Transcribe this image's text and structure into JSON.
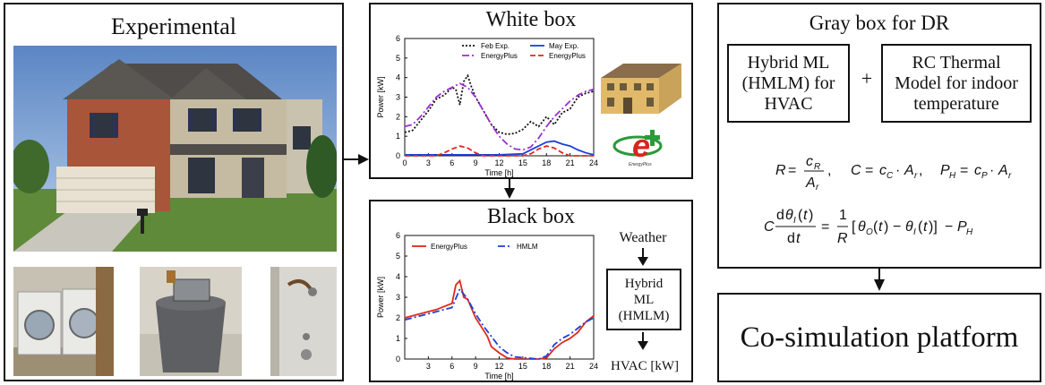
{
  "panels": {
    "experimental": {
      "title": "Experimental"
    },
    "white_box": {
      "title": "White box"
    },
    "black_box": {
      "title": "Black box"
    },
    "gray_box": {
      "title": "Gray box for DR"
    },
    "cosim": {
      "title": "Co-simulation platform"
    }
  },
  "gray_box": {
    "hmlm_box": [
      "Hybrid ML",
      "(HMLM) for",
      "HVAC"
    ],
    "plus": "+",
    "rc_box": [
      "RC Thermal",
      "Model for indoor",
      "temperature"
    ]
  },
  "black_box_flow": {
    "weather": "Weather",
    "hybrid_ml": [
      "Hybrid",
      "ML",
      "(HMLM)"
    ],
    "output": "HVAC [kW]"
  },
  "energyplus_logo": {
    "text": "EnergyPlus"
  },
  "chart_data": [
    {
      "type": "line",
      "panel": "White box",
      "xlabel": "Time [h]",
      "ylabel": "Power [kW]",
      "xlim": [
        0,
        24
      ],
      "ylim": [
        0,
        6
      ],
      "xticks": [
        0,
        3,
        6,
        9,
        12,
        15,
        18,
        21,
        24
      ],
      "yticks": [
        0,
        1,
        2,
        3,
        4,
        5,
        6
      ],
      "legend_position": "top",
      "series": [
        {
          "name": "Feb Exp.",
          "color": "#111111",
          "style": "dotted",
          "x": [
            0,
            1,
            2,
            3,
            4,
            5,
            6,
            6.5,
            7,
            7.5,
            8,
            8.5,
            9,
            10,
            11,
            12,
            13,
            14,
            15,
            16,
            17,
            18,
            19,
            20,
            21,
            22,
            23,
            24
          ],
          "y": [
            1.2,
            1.3,
            1.8,
            2.3,
            2.9,
            3.1,
            3.5,
            3.4,
            2.6,
            3.8,
            4.1,
            3.5,
            3.0,
            2.3,
            1.6,
            1.2,
            1.1,
            1.15,
            1.35,
            1.75,
            1.5,
            2.0,
            1.6,
            2.2,
            2.4,
            3.0,
            3.2,
            3.3
          ]
        },
        {
          "name": "May Exp.",
          "color": "#1f3fd6",
          "style": "solid",
          "x": [
            0,
            6,
            12,
            15,
            16,
            17,
            18,
            19,
            20,
            21,
            22,
            23,
            24
          ],
          "y": [
            0.05,
            0.05,
            0.05,
            0.1,
            0.3,
            0.5,
            0.7,
            0.75,
            0.6,
            0.5,
            0.3,
            0.15,
            0.05
          ]
        },
        {
          "name": "EnergyPlus",
          "color": "#9a2fd1",
          "style": "dashdot",
          "x": [
            0,
            1,
            2,
            3,
            4,
            5,
            6,
            7,
            8,
            9,
            10,
            11,
            12,
            13,
            14,
            15,
            16,
            17,
            18,
            19,
            20,
            21,
            22,
            23,
            24
          ],
          "y": [
            1.5,
            1.6,
            2.0,
            2.5,
            3.0,
            3.3,
            3.5,
            3.7,
            3.5,
            3.0,
            2.3,
            1.6,
            1.0,
            0.6,
            0.35,
            0.3,
            0.45,
            0.9,
            1.5,
            2.0,
            2.4,
            2.8,
            3.1,
            3.3,
            3.4
          ]
        },
        {
          "name": "EnergyPlus",
          "color": "#e0281d",
          "style": "dashed",
          "x": [
            0,
            4,
            5,
            6,
            7,
            8,
            9,
            10,
            15,
            16,
            17,
            18,
            19,
            20,
            21,
            24
          ],
          "y": [
            0,
            0,
            0.15,
            0.35,
            0.5,
            0.4,
            0.15,
            0,
            0,
            0.1,
            0.35,
            0.5,
            0.4,
            0.15,
            0,
            0
          ]
        }
      ]
    },
    {
      "type": "line",
      "panel": "Black box",
      "xlabel": "Time [h]",
      "ylabel": "Power [kW]",
      "xlim": [
        0,
        24
      ],
      "ylim": [
        0,
        6
      ],
      "xticks": [
        3,
        6,
        9,
        12,
        15,
        18,
        21,
        24
      ],
      "yticks": [
        0,
        1,
        2,
        3,
        4,
        5,
        6
      ],
      "legend_position": "top",
      "series": [
        {
          "name": "EnergyPlus",
          "color": "#e0281d",
          "style": "solid",
          "x": [
            0,
            2,
            4,
            6,
            6.5,
            7,
            7.5,
            8,
            9,
            10,
            10.5,
            11,
            12,
            13,
            14,
            17,
            18,
            19,
            20,
            21,
            22,
            23,
            24
          ],
          "y": [
            2.0,
            2.2,
            2.4,
            2.7,
            3.6,
            3.8,
            3.0,
            2.9,
            2.0,
            1.4,
            1.1,
            0.6,
            0.3,
            0.05,
            0,
            0,
            0.05,
            0.5,
            0.8,
            1.0,
            1.3,
            1.8,
            2.1
          ]
        },
        {
          "name": "HMLM",
          "color": "#1f3fd6",
          "style": "dashdot",
          "x": [
            0,
            2,
            4,
            6,
            7,
            8,
            9,
            10,
            11,
            12,
            13,
            14,
            17,
            18,
            19,
            20,
            21,
            22,
            23,
            24
          ],
          "y": [
            1.9,
            2.1,
            2.3,
            2.5,
            3.4,
            2.9,
            2.2,
            1.6,
            1.1,
            0.6,
            0.3,
            0.1,
            0,
            0.15,
            0.7,
            1.0,
            1.2,
            1.5,
            1.8,
            2.0
          ]
        }
      ]
    }
  ]
}
